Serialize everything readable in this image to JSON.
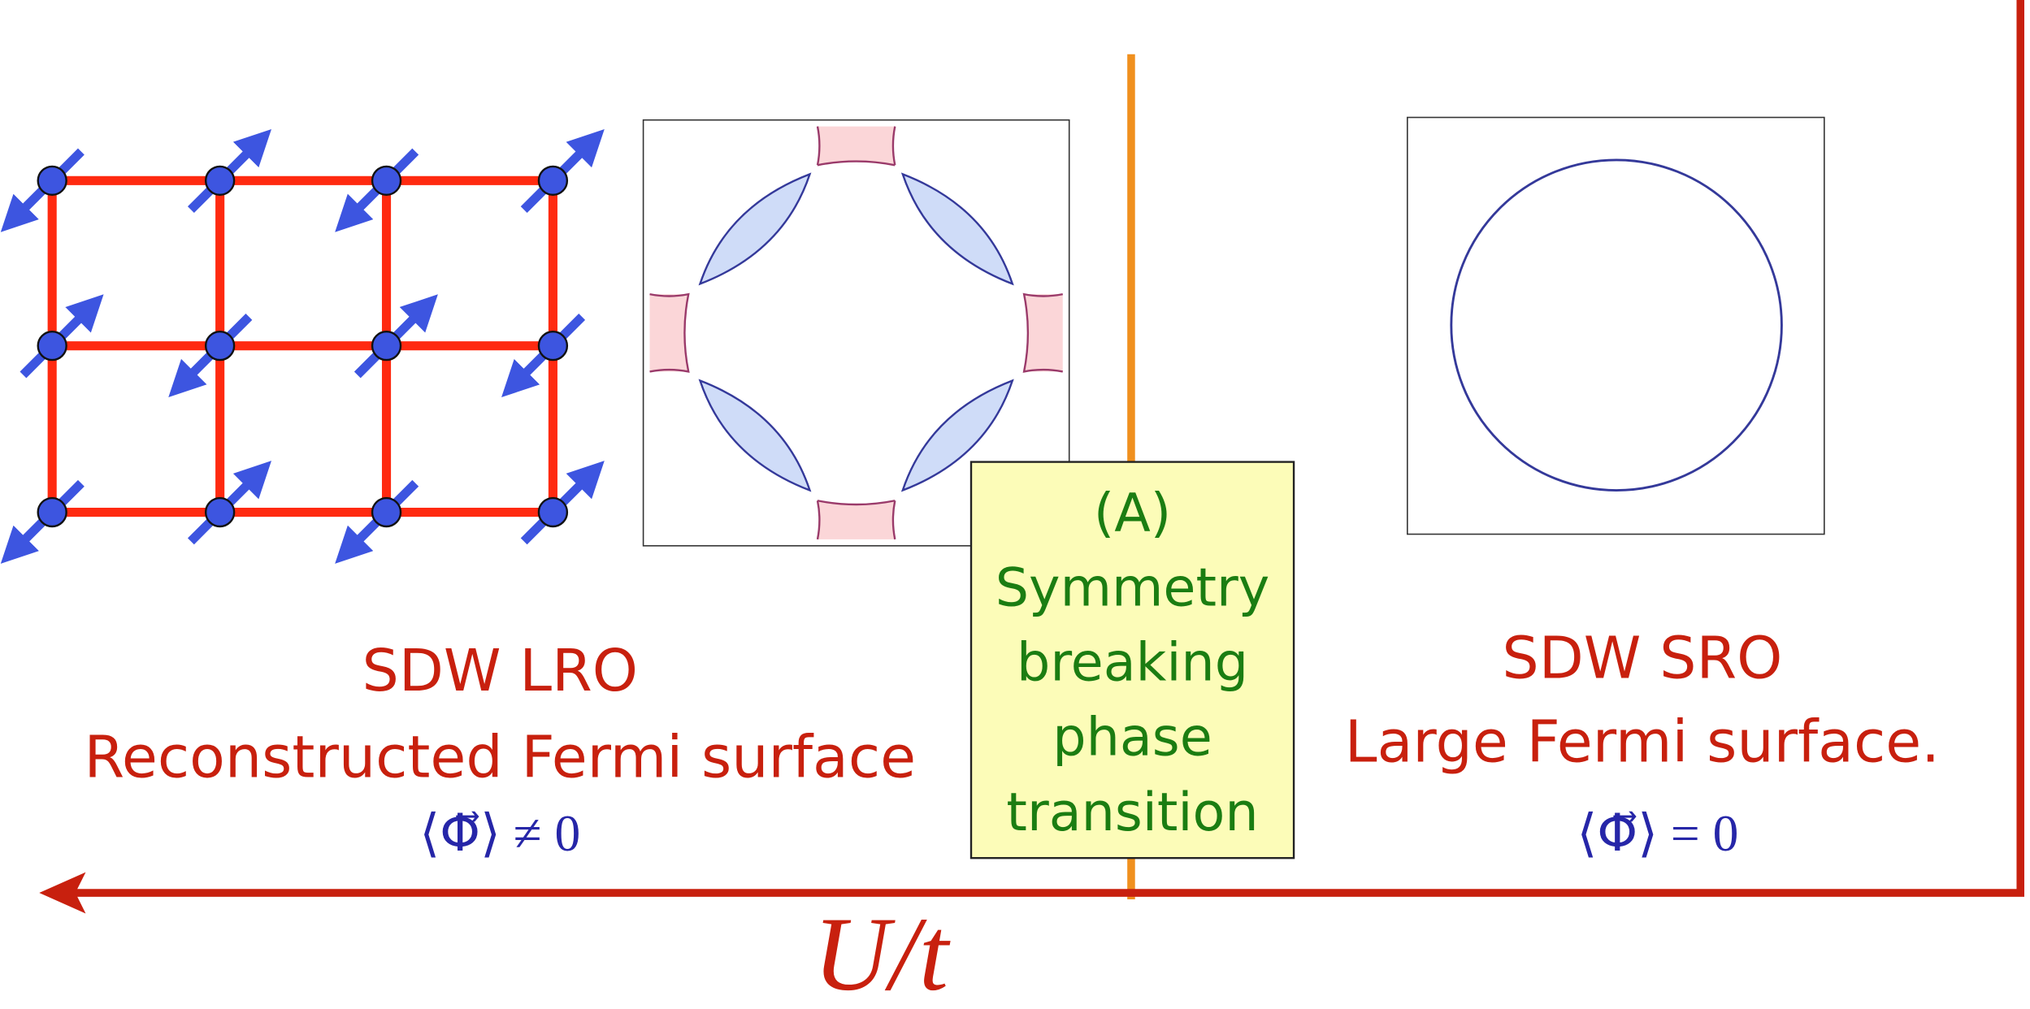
{
  "left": {
    "title": "SDW LRO",
    "subtitle": "Reconstructed Fermi surface",
    "formula": "⟨Φ⃗⟩ ≠ 0"
  },
  "right": {
    "title": "SDW SRO",
    "subtitle": "Large Fermi surface.",
    "formula": "⟨Φ⃗⟩ = 0"
  },
  "transition_box": {
    "lines": [
      "(A)",
      "Symmetry",
      "breaking",
      "phase",
      "transition"
    ]
  },
  "axis_label": "U/t"
}
